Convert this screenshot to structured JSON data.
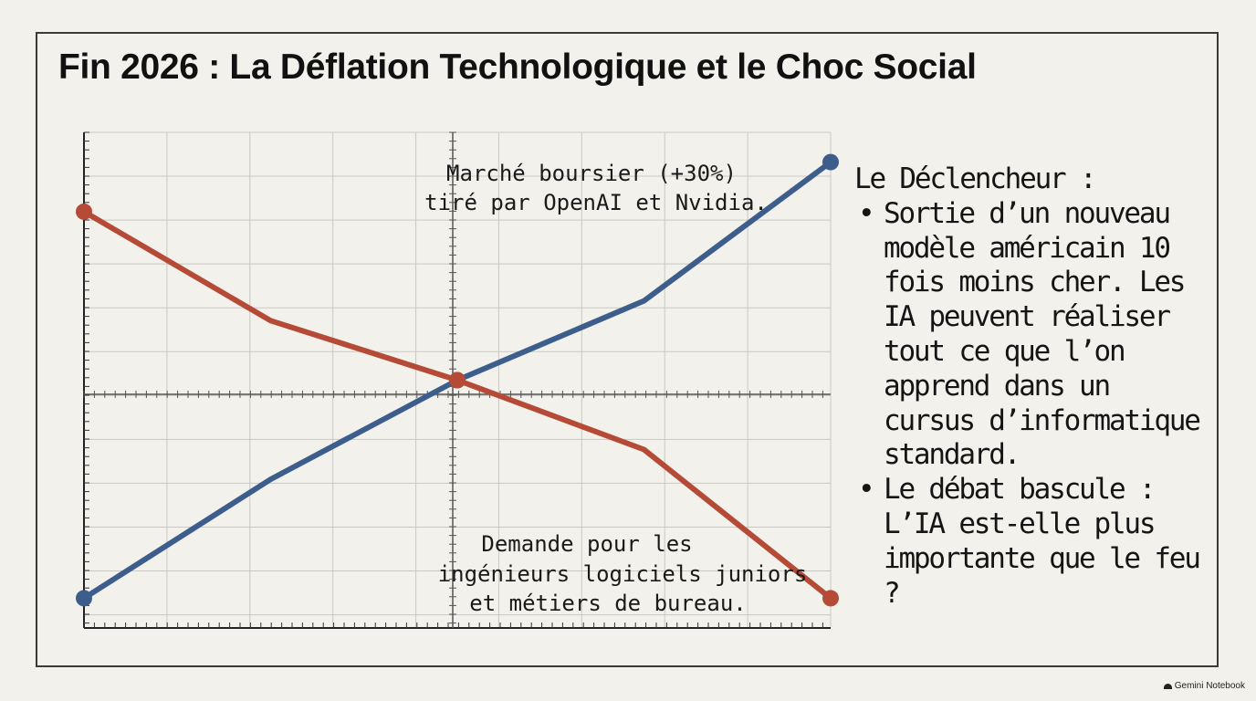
{
  "title": "Fin 2026 : La Déflation Technologique et le Choc Social",
  "chart_data": {
    "type": "line",
    "x": [
      0,
      1,
      2,
      3,
      4
    ],
    "xlim": [
      0,
      4
    ],
    "ylim": [
      0,
      100
    ],
    "grid": true,
    "series": [
      {
        "name": "Marché boursier (+30%) tiré par OpenAI et Nvidia.",
        "color": "#3d5e8c",
        "values": [
          6,
          30,
          50,
          66,
          94
        ]
      },
      {
        "name": "Demande pour les ingénieurs logiciels juniors et métiers de bureau.",
        "color": "#b54a36",
        "values": [
          84,
          62,
          50,
          36,
          6
        ]
      }
    ],
    "annotations": [
      {
        "lines": [
          "Marché boursier (+30%)",
          "tiré par OpenAI et Nvidia."
        ]
      },
      {
        "lines": [
          "Demande pour les",
          "ingénieurs logiciels juniors",
          "et métiers de bureau."
        ]
      }
    ]
  },
  "side_panel": {
    "heading": "Le Déclencheur :",
    "bullets": [
      "Sortie d’un nouveau modèle américain 10 fois moins cher. Les IA peuvent réaliser tout ce que l’on apprend dans un cursus d’informatique standard.",
      "Le débat bascule : L’IA est-elle plus importante que le feu ?"
    ]
  },
  "branding": {
    "label": "Gemini Notebook"
  }
}
